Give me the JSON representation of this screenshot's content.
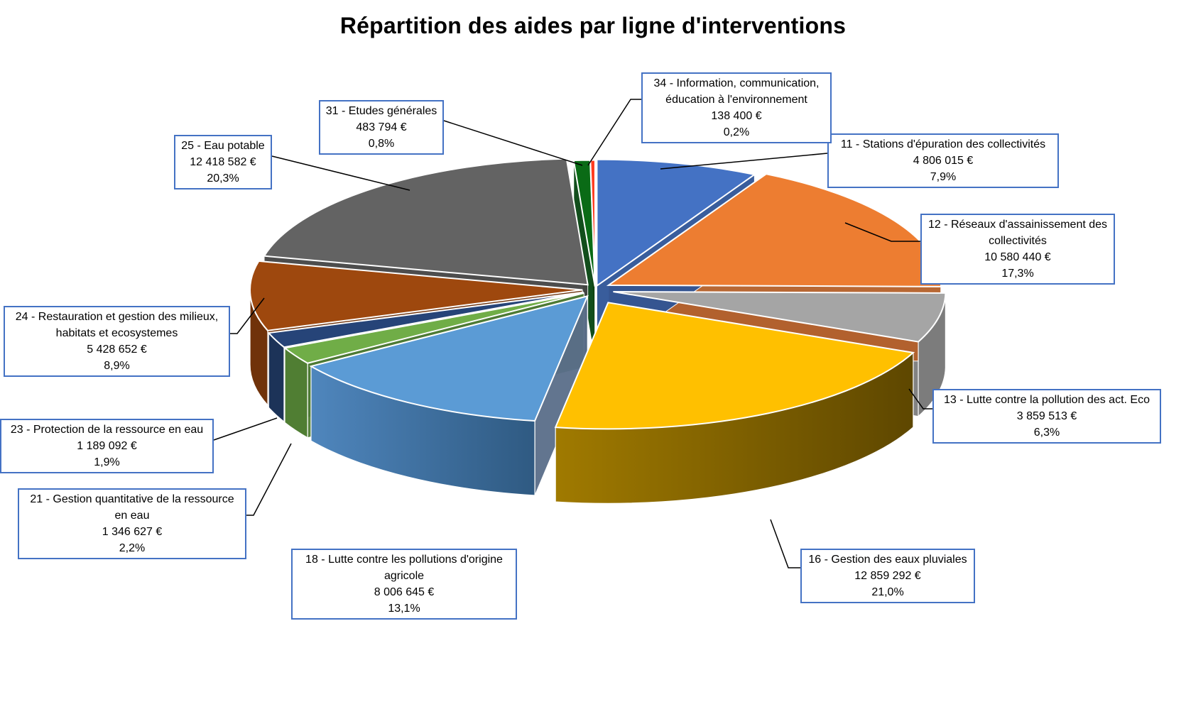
{
  "chart_data": {
    "type": "pie",
    "title": "Répartition des aides par ligne d'interventions",
    "slices": [
      {
        "name": "11 - Stations d'épuration des collectivités",
        "value_label": "4 806 015 €",
        "percent_label": "7,9%",
        "value": 4806015,
        "color": "#4472c4"
      },
      {
        "name": "12 - Réseaux d'assainissement des collectivités",
        "value_label": "10 580 440 €",
        "percent_label": "17,3%",
        "value": 10580440,
        "color": "#ed7d31"
      },
      {
        "name": "13 - Lutte contre la pollution des act. Eco",
        "value_label": "3 859 513 €",
        "percent_label": "6,3%",
        "value": 3859513,
        "color": "#a5a5a5"
      },
      {
        "name": "16 - Gestion des eaux pluviales",
        "value_label": "12 859 292 €",
        "percent_label": "21,0%",
        "value": 12859292,
        "color": "#ffc000"
      },
      {
        "name": "18 - Lutte contre les pollutions d'origine agricole",
        "value_label": "8 006 645 €",
        "percent_label": "13,1%",
        "value": 8006645,
        "color": "#5b9bd5"
      },
      {
        "name": "21 - Gestion quantitative de la ressource en eau",
        "value_label": "1 346 627 €",
        "percent_label": "2,2%",
        "value": 1346627,
        "color": "#70ad47"
      },
      {
        "name": "23 - Protection de la ressource en eau",
        "value_label": "1 189 092 €",
        "percent_label": "1,9%",
        "value": 1189092,
        "color": "#264478"
      },
      {
        "name": "24 - Restauration et gestion des milieux, habitats et ecosystemes",
        "value_label": "5 428 652 €",
        "percent_label": "8,9%",
        "value": 5428652,
        "color": "#9e480e"
      },
      {
        "name": "25 - Eau potable",
        "value_label": "12 418 582 €",
        "percent_label": "20,3%",
        "value": 12418582,
        "color": "#636363"
      },
      {
        "name": "31 - Etudes générales",
        "value_label": "483 794 €",
        "percent_label": "0,8%",
        "value": 483794,
        "color": "#0a6b16"
      },
      {
        "name": "34 - Information, communication, éducation à l'environnement",
        "value_label": "138 400 €",
        "percent_label": "0,2%",
        "value": 138400,
        "color": "#ff3b1f"
      }
    ]
  }
}
